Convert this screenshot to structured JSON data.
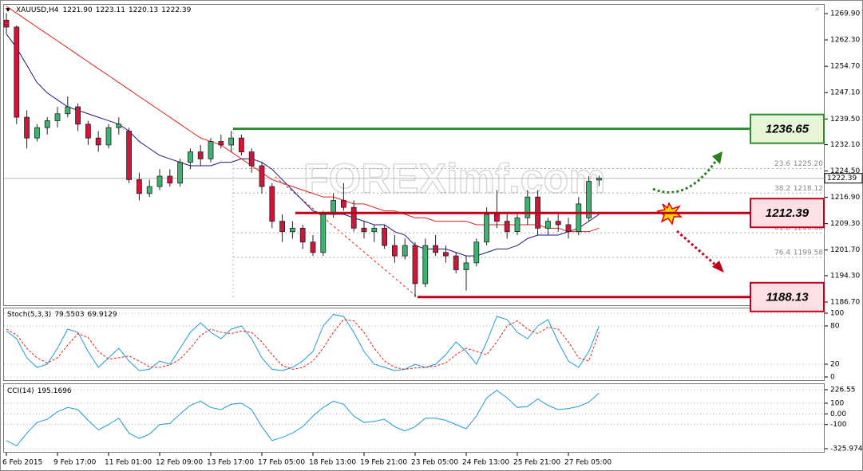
{
  "chart_data": {
    "type": "candlestick",
    "header": {
      "symbol": "XAUUSD,H4",
      "ohlc": [
        {
          "value": 1221.9,
          "label": "1221.90"
        },
        1223.11,
        1220.13,
        1222.39
      ]
    },
    "categories": [
      "6 Feb 2015",
      null,
      null,
      null,
      null,
      "9 Feb 17:00",
      null,
      null,
      null,
      null,
      "11 Feb 01:00",
      null,
      null,
      null,
      null,
      "12 Feb 09:00",
      null,
      null,
      null,
      null,
      "13 Feb 17:00",
      null,
      null,
      null,
      null,
      "17 Feb 05:00",
      null,
      null,
      null,
      null,
      "18 Feb 13:00",
      null,
      null,
      null,
      null,
      "19 Feb 21:00",
      null,
      null,
      null,
      null,
      "23 Feb 05:00",
      null,
      null,
      null,
      null,
      "24 Feb 13:00",
      null,
      null,
      null,
      null,
      "25 Feb 21:00",
      null,
      null,
      null,
      null,
      "27 Feb 05:00",
      null,
      null,
      null
    ],
    "open": [
      1268,
      1266,
      1240,
      1234,
      1237,
      1239,
      1241,
      1243,
      1238,
      1234,
      1232,
      1237,
      1236,
      1222,
      1218,
      1220,
      1223,
      1221,
      1227,
      1230,
      1228,
      1233,
      1232,
      1234,
      1230,
      1226,
      1220,
      1210,
      1207,
      1208,
      1204,
      1201,
      1212,
      1216,
      1214,
      1208,
      1207,
      1208,
      1203,
      1200,
      1203,
      1192,
      1203,
      1201,
      1200,
      1196,
      1198,
      1204,
      1212,
      1210,
      1207,
      1211,
      1217,
      1208,
      1210,
      1209,
      1207,
      1211,
      1221.9
    ],
    "high": [
      1270,
      1266.5,
      1242,
      1238,
      1240,
      1243,
      1246,
      1244,
      1239,
      1236,
      1238,
      1240,
      1237,
      1224,
      1222,
      1225,
      1225,
      1228,
      1231,
      1232,
      1234,
      1235,
      1236,
      1235,
      1231,
      1227,
      1221,
      1212,
      1210,
      1209,
      1206,
      1213,
      1218,
      1221,
      1216,
      1210,
      1209,
      1209,
      1206,
      1205,
      1204,
      1205,
      1206,
      1203,
      1201,
      1200,
      1205,
      1214,
      1219,
      1212,
      1212,
      1219,
      1219,
      1211,
      1212,
      1211,
      1217,
      1223,
      1223.11
    ],
    "low": [
      1264,
      1238,
      1231,
      1233,
      1235,
      1237,
      1240,
      1236,
      1232,
      1230,
      1231,
      1235,
      1221,
      1216,
      1217,
      1219,
      1220,
      1220,
      1225,
      1226,
      1227,
      1231,
      1230,
      1229,
      1224,
      1218,
      1208,
      1204,
      1205,
      1202,
      1200,
      1200,
      1211,
      1213,
      1207,
      1205,
      1204,
      1202,
      1198,
      1199,
      1188.13,
      1191,
      1200,
      1198,
      1195,
      1190,
      1197,
      1203,
      1208,
      1205,
      1206,
      1209,
      1206,
      1206,
      1207,
      1205,
      1206,
      1210,
      1220.13
    ],
    "close": [
      1266,
      1240,
      1234,
      1237,
      1239,
      1241,
      1243,
      1238,
      1234,
      1232,
      1237,
      1238,
      1222,
      1218,
      1220,
      1223,
      1221,
      1227,
      1230,
      1228,
      1233,
      1232,
      1234,
      1230,
      1226,
      1220,
      1210,
      1207,
      1208,
      1204,
      1201,
      1212,
      1216,
      1214,
      1208,
      1207,
      1208,
      1203,
      1200,
      1203,
      1192,
      1203,
      1201,
      1200,
      1196,
      1198,
      1204,
      1212,
      1210,
      1207,
      1211,
      1217,
      1208,
      1210,
      1209,
      1207,
      1215,
      1221.5,
      1222.39
    ],
    "up_color": "#3cb371",
    "down_color": "#d2143a",
    "ylim": [
      1185.55,
      1272.66
    ],
    "yticks": [
      {
        "value": 1269.9,
        "label": "1269.90"
      },
      {
        "value": 1262.3,
        "label": "1262.30"
      },
      {
        "value": 1254.7,
        "label": "1254.70"
      },
      {
        "value": 1247.1,
        "label": "1247.10"
      },
      {
        "value": 1239.5,
        "label": "1239.50"
      },
      {
        "value": 1232.1,
        "label": "1232.10"
      },
      {
        "value": 1224.5,
        "label": "1224.50"
      },
      {
        "value": 1216.9,
        "label": "1216.90"
      },
      {
        "value": 1209.3,
        "label": "1209.30"
      },
      {
        "value": 1201.7,
        "label": "1201.70"
      },
      {
        "value": 1194.3,
        "label": "1194.30"
      },
      {
        "value": 1186.7,
        "label": "1186.70"
      }
    ],
    "moving_averages": [
      {
        "color": "#1a1a80",
        "values": [
          1264,
          1260,
          1255,
          1250,
          1247,
          1245,
          1243,
          1242,
          1241,
          1240,
          1239,
          1238,
          1236,
          1233,
          1231,
          1229,
          1228,
          1227,
          1226,
          1226,
          1226,
          1227,
          1227,
          1228,
          1228,
          1227,
          1225,
          1222,
          1219,
          1216,
          1213,
          1212,
          1212,
          1212,
          1211,
          1210,
          1209,
          1209,
          1207,
          1206,
          1203,
          1202,
          1202,
          1202,
          1201,
          1200,
          1200,
          1201,
          1202,
          1202,
          1203,
          1205,
          1206,
          1206,
          1206,
          1207,
          1208,
          1210,
          1212
        ]
      },
      {
        "color": "#e02020",
        "values": [
          1272,
          1270,
          1268,
          1266,
          1264,
          1262,
          1260,
          1258,
          1256,
          1254,
          1252,
          1250,
          1248,
          1246,
          1244,
          1242,
          1240,
          1238,
          1236,
          1234,
          1233,
          1232,
          1230,
          1228,
          1226,
          1224,
          1222,
          1221,
          1220,
          1219,
          1218,
          1217,
          1217,
          1216,
          1215,
          1215,
          1214,
          1213,
          1213,
          1212,
          1211,
          1211,
          1210,
          1210,
          1210,
          1210,
          1209,
          1209,
          1209,
          1209,
          1209,
          1209,
          1209,
          1208,
          1208,
          1207,
          1207,
          1207,
          1208
        ]
      }
    ],
    "levels": [
      {
        "value": 1236.65,
        "color": "#2e8b2e"
      },
      {
        "value": 1212.39,
        "color": "#c0001a"
      },
      {
        "value": 1188.13,
        "color": "#c0001a"
      }
    ],
    "fib": [
      {
        "level": 23.6,
        "price": {
          "value": 1225.2,
          "label": "1225.20"
        }
      },
      {
        "level": 38.2,
        "price": 1218.12
      },
      {
        "level": 61.8,
        "price": 1206.66
      },
      {
        "level": 76.4,
        "price": 1199.58
      }
    ],
    "watermark": "FOREXimf.com",
    "stoch": {
      "name": "Stoch(5,3,3)",
      "main": {
        "color": "#1e9ad6",
        "values": [
          72,
          60,
          30,
          15,
          20,
          45,
          75,
          70,
          40,
          15,
          30,
          45,
          25,
          10,
          12,
          25,
          20,
          45,
          70,
          85,
          70,
          60,
          75,
          80,
          60,
          30,
          12,
          10,
          15,
          25,
          40,
          80,
          98,
          95,
          70,
          40,
          20,
          15,
          10,
          12,
          20,
          15,
          20,
          35,
          55,
          40,
          20,
          55,
          95,
          90,
          70,
          60,
          80,
          90,
          55,
          25,
          15,
          40,
          79.5503
        ]
      },
      "signal": {
        "color": "#e02020",
        "values": [
          75,
          66,
          45,
          30,
          22,
          30,
          50,
          68,
          62,
          40,
          28,
          30,
          33,
          25,
          16,
          15,
          19,
          28,
          45,
          65,
          75,
          70,
          68,
          72,
          70,
          55,
          35,
          18,
          12,
          15,
          25,
          45,
          70,
          90,
          88,
          70,
          45,
          25,
          15,
          12,
          14,
          15,
          17,
          22,
          35,
          45,
          40,
          35,
          55,
          80,
          88,
          75,
          68,
          78,
          75,
          55,
          30,
          25,
          69.9129
        ]
      },
      "ylim": [
        -6.25,
        108.75
      ],
      "yticks": [
        100,
        80,
        20,
        0
      ]
    },
    "cci": {
      "name": "CCI(14)",
      "color": "#1e9ad6",
      "values": [
        -250,
        -300,
        -180,
        -80,
        -50,
        20,
        60,
        40,
        -60,
        -150,
        -100,
        -40,
        -180,
        -230,
        -190,
        -100,
        -90,
        0,
        80,
        120,
        60,
        40,
        90,
        100,
        40,
        -120,
        -250,
        -220,
        -180,
        -120,
        -20,
        60,
        120,
        90,
        -20,
        -80,
        -70,
        -50,
        -120,
        -160,
        -120,
        -40,
        -40,
        -60,
        -100,
        -140,
        -20,
        150,
        220,
        150,
        60,
        70,
        140,
        80,
        40,
        50,
        70,
        110,
        195.1696
      ],
      "ylim": [
        -363.3,
        286.3
      ],
      "yticks": [
        226.55,
        100,
        {
          "value": 0,
          "label": "0.00"
        },
        -100,
        -325.9741
      ]
    }
  }
}
